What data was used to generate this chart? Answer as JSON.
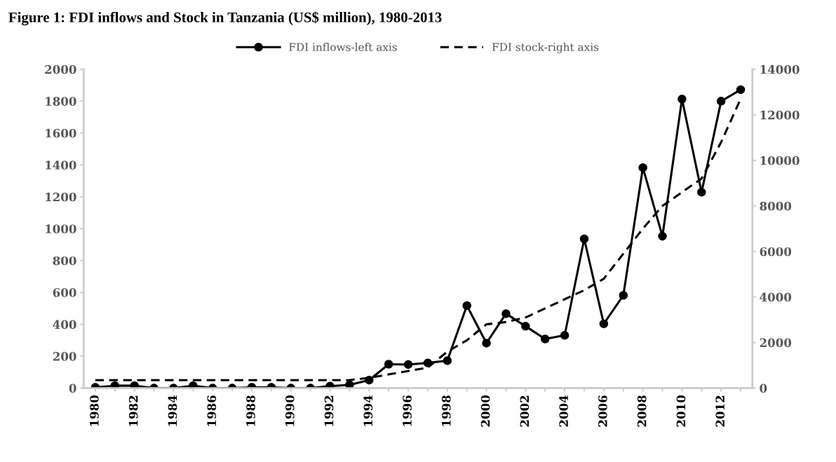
{
  "chart_data": {
    "type": "line",
    "title": "Figure 1: FDI inflows and Stock in Tanzania (US$ million), 1980-2013",
    "categories": [
      "1980",
      null,
      "1982",
      null,
      "1984",
      null,
      "1986",
      null,
      "1988",
      null,
      "1990",
      null,
      "1992",
      null,
      "1994",
      null,
      "1996",
      null,
      "1998",
      null,
      "2000",
      null,
      "2002",
      null,
      "2004",
      null,
      "2006",
      null,
      "2008",
      null,
      "2010",
      null,
      "2012",
      null
    ],
    "series": [
      {
        "name": "FDI inflows-left axis",
        "color": "#000000",
        "marker": "circle",
        "line_style": "solid",
        "values": [
          5,
          15,
          15,
          0,
          0,
          15,
          0,
          0,
          5,
          5,
          0,
          0,
          12,
          20,
          50,
          150,
          148,
          158,
          172,
          517,
          282,
          467,
          388,
          308,
          331,
          936,
          403,
          582,
          1383,
          953,
          1813,
          1229,
          1800,
          1872
        ]
      },
      {
        "name": "FDI stock-right axis",
        "color": "#000000",
        "marker": "none",
        "line_style": "dashed",
        "axis": "y2",
        "values": [
          350,
          350,
          350,
          350,
          350,
          350,
          350,
          350,
          350,
          350,
          350,
          350,
          350,
          350,
          450,
          600,
          750,
          900,
          1600,
          2100,
          2800,
          2900,
          3100,
          3500,
          3900,
          4300,
          4800,
          5900,
          7000,
          8000,
          8600,
          9200,
          10800,
          12700
        ]
      }
    ],
    "ylim": [
      0,
      2000
    ],
    "yticks": [
      0,
      200,
      400,
      600,
      800,
      1000,
      1200,
      1400,
      1600,
      1800,
      2000
    ],
    "y2lim": [
      0,
      14000
    ],
    "y2ticks": [
      0,
      2000,
      4000,
      6000,
      8000,
      10000,
      12000,
      14000
    ],
    "grid": false,
    "legend": "top"
  }
}
